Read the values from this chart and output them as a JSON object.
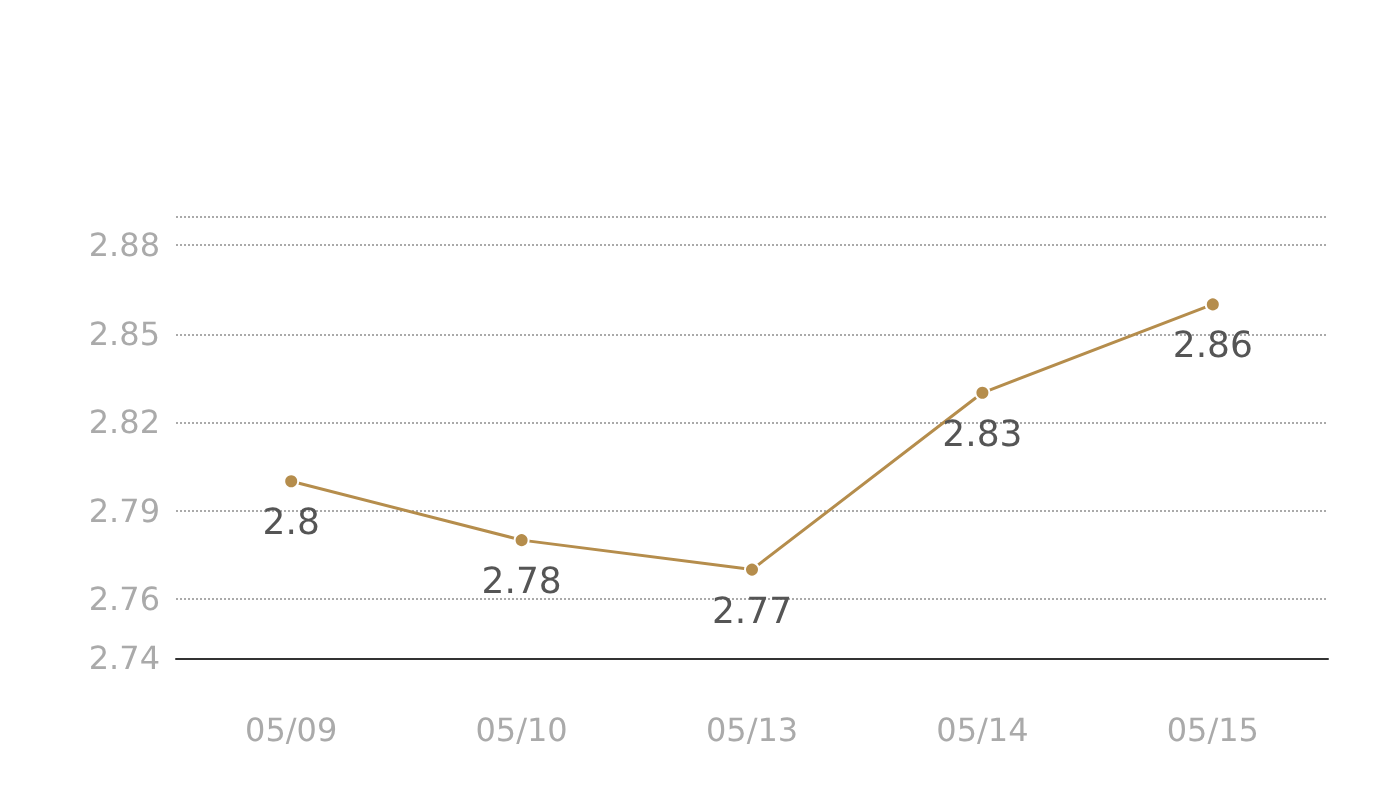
{
  "chart_data": {
    "type": "line",
    "categories": [
      "05/09",
      "05/10",
      "05/13",
      "05/14",
      "05/15"
    ],
    "series": [
      {
        "color": "#b58d4c",
        "values": [
          2.8,
          2.78,
          2.77,
          2.83,
          2.86
        ]
      }
    ],
    "ylim": [
      2.74,
      2.89
    ],
    "yticks": [
      2.74,
      2.76,
      2.79,
      2.82,
      2.85,
      2.88,
      {
        "value": 2.89,
        "label": null
      }
    ],
    "grid": "y",
    "data_labels": true,
    "marker": "circle",
    "line_style": "solid"
  }
}
